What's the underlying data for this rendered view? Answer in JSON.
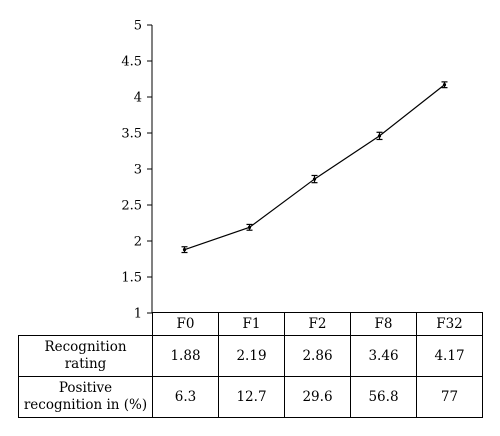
{
  "chart_data": {
    "type": "line",
    "categories": [
      "F0",
      "F1",
      "F2",
      "F8",
      "F32"
    ],
    "series": [
      {
        "values": [
          1.88,
          2.19,
          2.86,
          3.46,
          4.17
        ],
        "error": [
          0.04,
          0.04,
          0.05,
          0.05,
          0.04
        ]
      }
    ],
    "ylim": [
      1,
      5
    ],
    "yticks": [
      "1",
      "1.5",
      "2",
      "2.5",
      "3",
      "3.5",
      "4",
      "4.5",
      "5"
    ],
    "grid": false,
    "line_color": "#000000"
  },
  "table": {
    "columns": [
      "F0",
      "F1",
      "F2",
      "F8",
      "F32"
    ],
    "rows": [
      {
        "label_line1": "Recognition",
        "label_line2": "rating",
        "values": [
          "1.88",
          "2.19",
          "2.86",
          "3.46",
          "4.17"
        ]
      },
      {
        "label_line1": "Positive",
        "label_line2": "recognition in (%)",
        "values": [
          "6.3",
          "12.7",
          "29.6",
          "56.8",
          "77"
        ]
      }
    ]
  }
}
